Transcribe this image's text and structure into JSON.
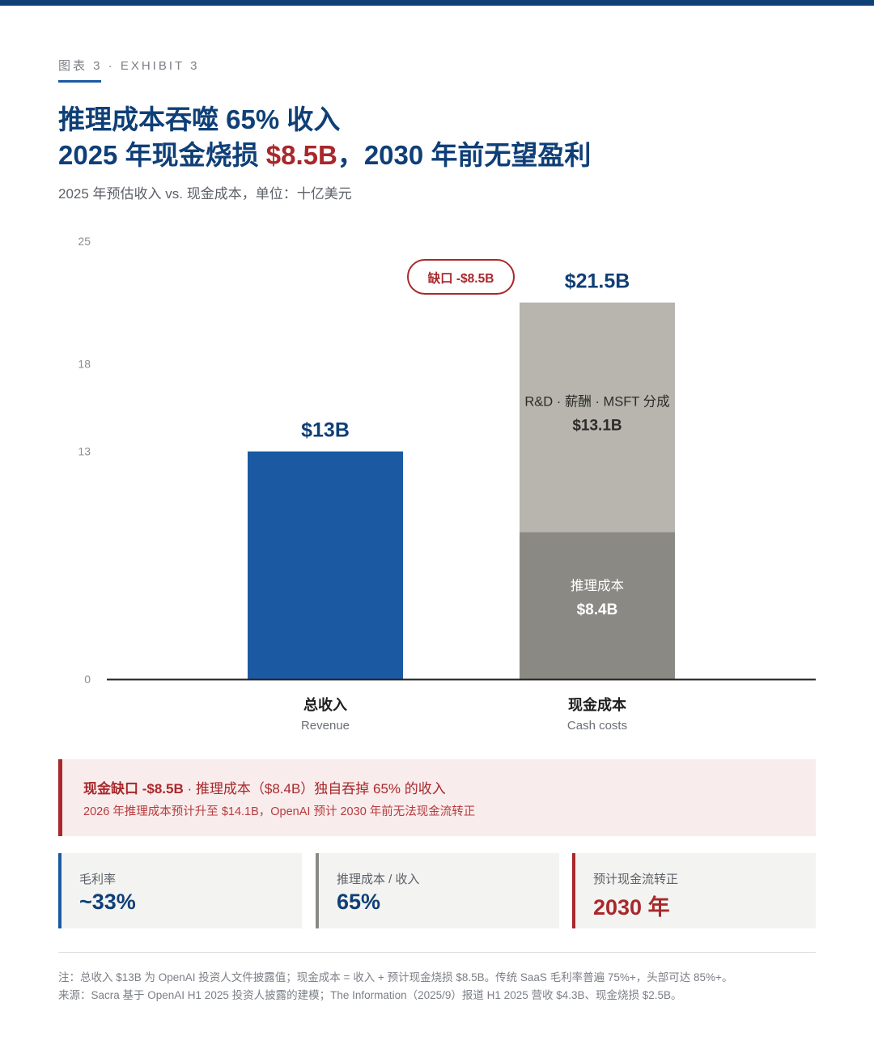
{
  "header": {
    "exhibit": "图表 3 · EXHIBIT 3",
    "title_line1": "推理成本吞噬 65% 收入",
    "title_line2_pre": "2025 年现金烧损 ",
    "title_line2_hl": "$8.5B",
    "title_line2_post": "，2030 年前无望盈利",
    "subtitle": "2025 年预估收入 vs. 现金成本，单位：十亿美元"
  },
  "chart_data": {
    "type": "bar",
    "stacked": true,
    "y_ticks": [
      0,
      13,
      18,
      25
    ],
    "ylim": [
      0,
      25
    ],
    "categories": [
      {
        "name": "总收入",
        "sub": "Revenue",
        "total_label": "$13B"
      },
      {
        "name": "现金成本",
        "sub": "Cash costs",
        "total_label": "$21.5B"
      }
    ],
    "series": [
      {
        "name": "总收入",
        "values": [
          13,
          0
        ],
        "color": "#1b5aa3",
        "segment_labels": [
          "",
          ""
        ]
      },
      {
        "name": "推理成本",
        "values": [
          0,
          8.4
        ],
        "color": "#8a8984",
        "segment_labels": [
          "",
          "$8.4B"
        ]
      },
      {
        "name": "R&D · 薪酬 · MSFT 分成",
        "values": [
          0,
          13.1
        ],
        "color": "#b7b5ad",
        "segment_labels": [
          "",
          "$13.1B"
        ]
      }
    ],
    "gap_badge": "缺口 -$8.5B",
    "colors": {
      "revenue": "#1b5aa3",
      "inference": "#8a8984",
      "other": "#b7b5ad",
      "accent": "#a8282b",
      "navy": "#0f3f77"
    }
  },
  "callout": {
    "strong": "现金缺口 -$8.5B",
    "sep": " · ",
    "rest": "推理成本（$8.4B）独自吞掉 65% 的收入",
    "line2": "2026 年推理成本预计升至 $14.1B，OpenAI 预计 2030 年前无法现金流转正"
  },
  "kpis": [
    {
      "label": "毛利率",
      "value": "~33%",
      "color": "#1b5aa3"
    },
    {
      "label": "推理成本 / 收入",
      "value": "65%",
      "color": "#8a8984"
    },
    {
      "label": "预计现金流转正",
      "value": "2030 年",
      "color": "#a8282b"
    }
  ],
  "footnotes": {
    "note": "注：总收入 $13B 为 OpenAI 投资人文件披露值；现金成本 = 收入 + 预计现金烧损 $8.5B。传统 SaaS 毛利率普遍 75%+，头部可达 85%+。",
    "source": "来源：Sacra 基于 OpenAI H1 2025 投资人披露的建模；The Information（2025/9）报道 H1 2025 营收 $4.3B、现金烧损 $2.5B。"
  }
}
